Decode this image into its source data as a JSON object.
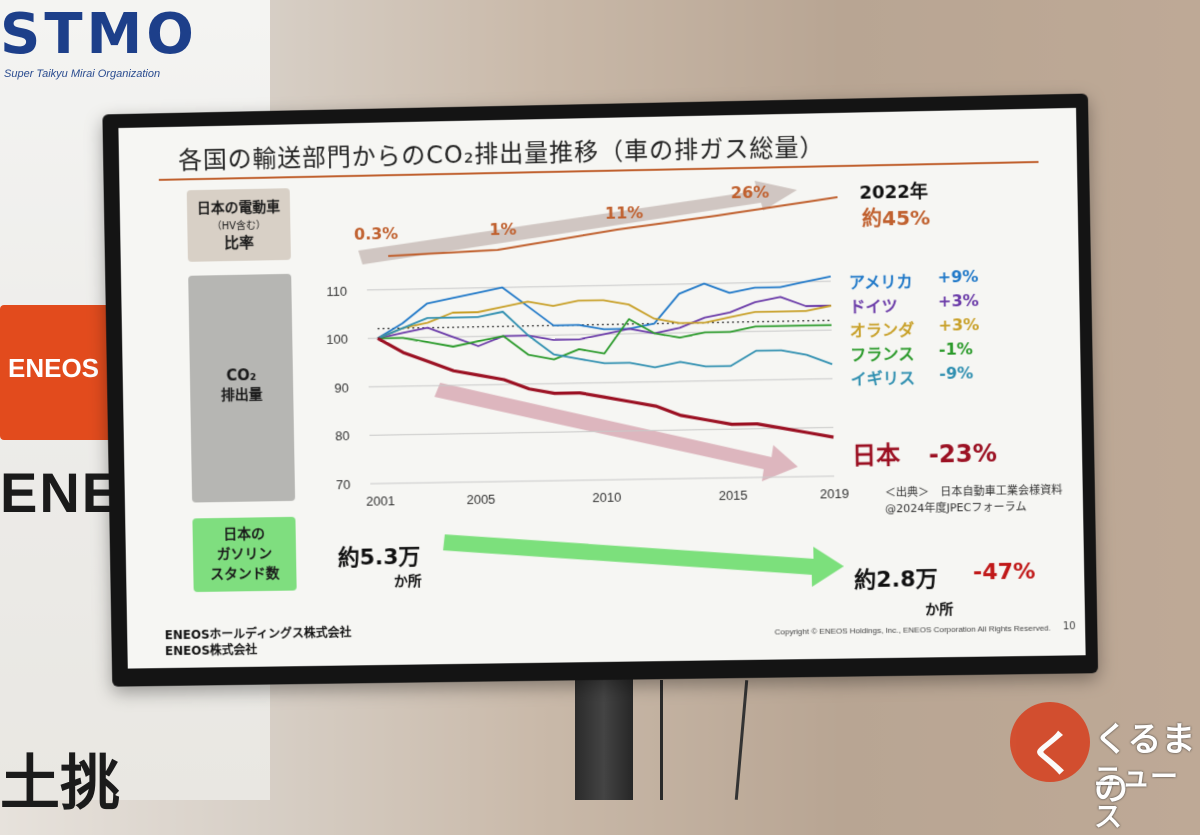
{
  "background": {
    "stmo_logo": "STMO",
    "stmo_subtitle": "Super Taikyu Mirai Organization",
    "eneos_badge": "ENEOS",
    "eneos_wall_text": "ENEO",
    "bottom_text": "土挑",
    "watermark": {
      "icon_text": "く",
      "line1": "くるまの",
      "line2": "ニュース"
    }
  },
  "slide": {
    "title": "各国の輸送部門からのCO₂排出量推移（車の排ガス総量）",
    "ev_box": {
      "line1": "日本の電動車",
      "line2": "（HV含む）",
      "line3": "比率"
    },
    "co2_box": {
      "line1": "CO₂",
      "line2": "排出量"
    },
    "gas_box": {
      "line1": "日本の",
      "line2": "ガソリン",
      "line3": "スタンド数"
    },
    "ev_ratio": {
      "labels": [
        "0.3%",
        "1%",
        "11%",
        "26%"
      ],
      "year_label": "2022年",
      "final_value": "約45%"
    },
    "legend": [
      {
        "country": "アメリカ",
        "change": "+9%",
        "color": "#1f78c8"
      },
      {
        "country": "ドイツ",
        "change": "+3%",
        "color": "#6a3aa8"
      },
      {
        "country": "オランダ",
        "change": "+3%",
        "color": "#c8a028"
      },
      {
        "country": "フランス",
        "change": "-1%",
        "color": "#2a9a2a"
      },
      {
        "country": "イギリス",
        "change": "-9%",
        "color": "#2f8fb0"
      }
    ],
    "japan": {
      "country": "日本",
      "change": "-23%",
      "color": "#9b1022"
    },
    "source_line1": "＜出典＞　日本自動車工業会様資料",
    "source_line2": "@2024年度JPECフォーラム",
    "gas_stations": {
      "start_value": "約5.3万",
      "start_unit": "か所",
      "end_value": "約2.8万",
      "end_change": "-47%",
      "end_unit": "か所"
    },
    "footer_company1": "ENEOSホールディングス株式会社",
    "footer_company2": "ENEOS株式会社",
    "copyright": "Copyright © ENEOS Holdings, Inc., ENEOS Corporation  All Rights Reserved.",
    "page_number": "10"
  },
  "chart_data": {
    "type": "line",
    "x": [
      2001,
      2002,
      2003,
      2004,
      2005,
      2006,
      2007,
      2008,
      2009,
      2010,
      2011,
      2012,
      2013,
      2014,
      2015,
      2016,
      2017,
      2018,
      2019
    ],
    "xticks": [
      "2001",
      "2005",
      "2010",
      "2015",
      "2019"
    ],
    "yticks": [
      "110",
      "100",
      "90",
      "80",
      "70"
    ],
    "ylim": [
      70,
      112
    ],
    "reference_line": 102,
    "series": [
      {
        "name": "アメリカ",
        "color": "#1f78c8",
        "values": [
          100,
          103,
          107,
          108,
          109,
          110,
          106,
          102,
          102,
          101,
          101,
          102,
          108,
          110,
          108,
          109,
          109,
          110,
          111
        ]
      },
      {
        "name": "ドイツ",
        "color": "#6a3aa8",
        "values": [
          100,
          101,
          102,
          100,
          98,
          100,
          100,
          99,
          99,
          100,
          101,
          100,
          101,
          103,
          104,
          106,
          107,
          105,
          105
        ]
      },
      {
        "name": "オランダ",
        "color": "#c8a028",
        "values": [
          100,
          102,
          103,
          105,
          105,
          106,
          107,
          106,
          107,
          107,
          106,
          103,
          102,
          102,
          103,
          104,
          104,
          104,
          105
        ]
      },
      {
        "name": "フランス",
        "color": "#2a9a2a",
        "values": [
          100,
          100,
          99,
          98,
          99,
          100,
          96,
          95,
          97,
          96,
          103,
          100,
          99,
          100,
          100,
          101,
          101,
          101,
          101
        ]
      },
      {
        "name": "イギリス",
        "color": "#2f8fb0",
        "values": [
          100,
          102,
          104,
          104,
          104,
          105,
          100,
          96,
          95,
          94,
          94,
          93,
          94,
          93,
          93,
          96,
          96,
          95,
          93
        ]
      },
      {
        "name": "日本",
        "color": "#9b1022",
        "values": [
          100,
          97,
          95,
          93,
          92,
          91,
          89,
          88,
          88,
          87,
          86,
          85,
          83,
          82,
          81,
          81,
          80,
          79,
          78
        ]
      }
    ]
  }
}
